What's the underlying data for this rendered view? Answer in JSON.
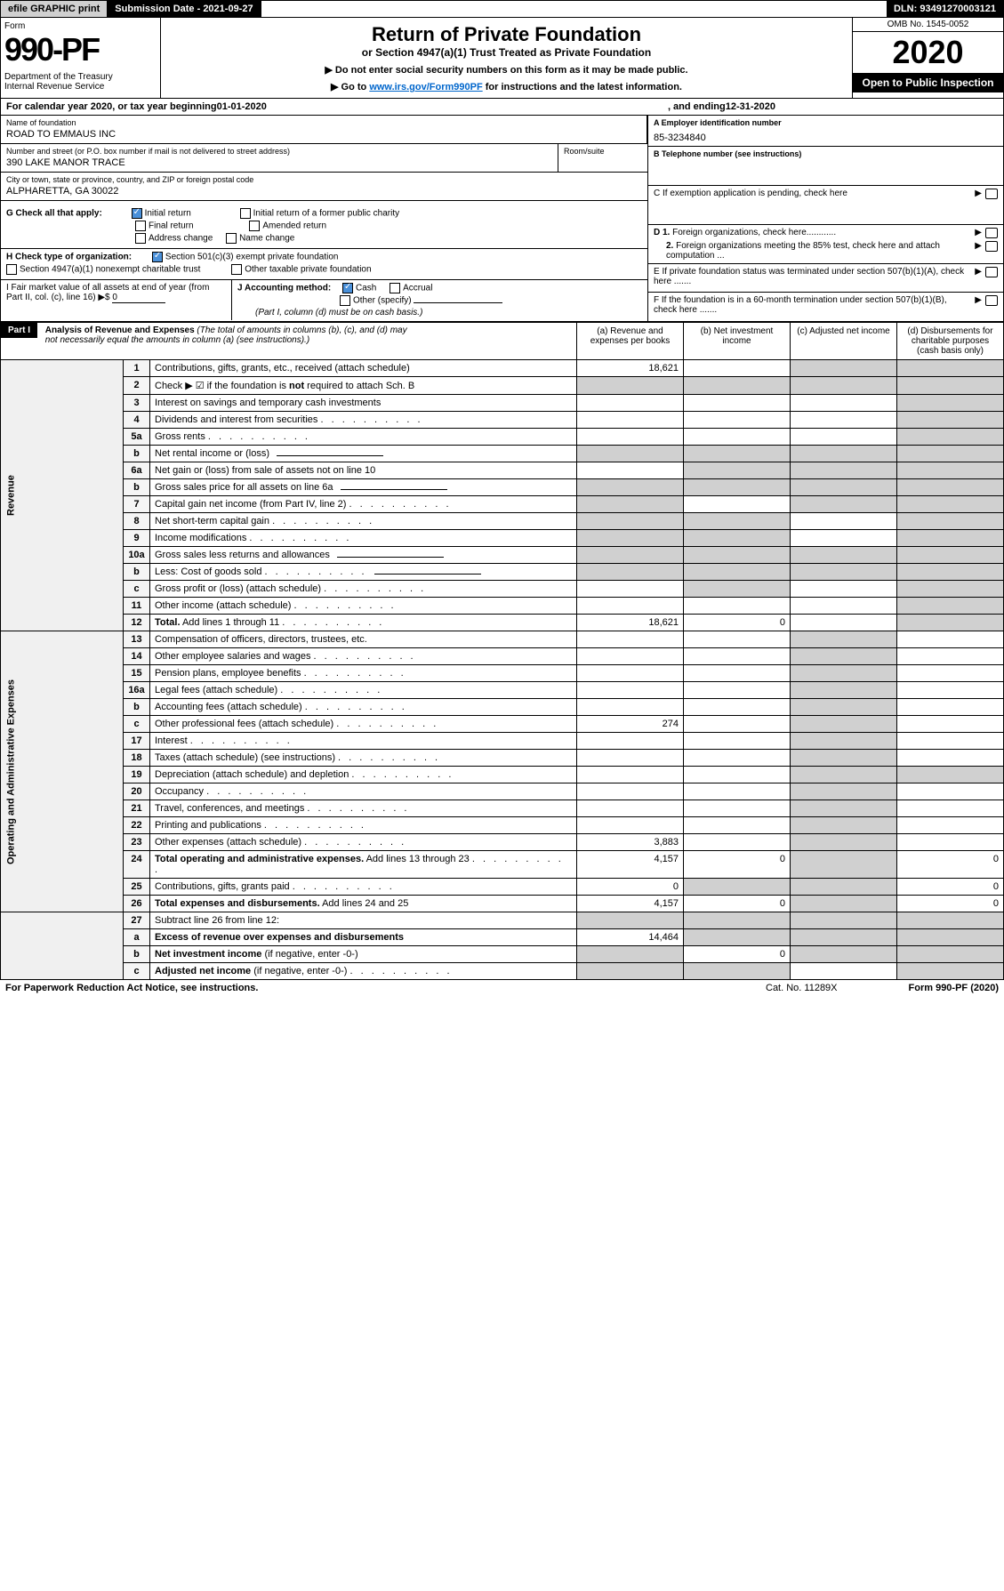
{
  "topbar": {
    "efile": "efile GRAPHIC print",
    "subdate": "Submission Date - 2021-09-27",
    "dln": "DLN: 93491270003121"
  },
  "header": {
    "form_label": "Form",
    "form_num": "990-PF",
    "dept": "Department of the Treasury\nInternal Revenue Service",
    "title": "Return of Private Foundation",
    "subtitle": "or Section 4947(a)(1) Trust Treated as Private Foundation",
    "instr1": "▶ Do not enter social security numbers on this form as it may be made public.",
    "instr2_pre": "▶ Go to ",
    "instr2_link": "www.irs.gov/Form990PF",
    "instr2_post": " for instructions and the latest information.",
    "omb": "OMB No. 1545-0052",
    "year": "2020",
    "open": "Open to Public Inspection"
  },
  "calyear": {
    "pre": "For calendar year 2020, or tax year beginning ",
    "begin": "01-01-2020",
    "mid": ", and ending ",
    "end": "12-31-2020"
  },
  "info": {
    "name_lbl": "Name of foundation",
    "name_val": "ROAD TO EMMAUS INC",
    "addr_lbl": "Number and street (or P.O. box number if mail is not delivered to street address)",
    "addr_val": "390 LAKE MANOR TRACE",
    "room_lbl": "Room/suite",
    "city_lbl": "City or town, state or province, country, and ZIP or foreign postal code",
    "city_val": "ALPHARETTA, GA  30022",
    "g_label": "G Check all that apply:",
    "g_initial": "Initial return",
    "g_initial_former": "Initial return of a former public charity",
    "g_final": "Final return",
    "g_amended": "Amended return",
    "g_address": "Address change",
    "g_name": "Name change",
    "h_label": "H Check type of organization:",
    "h_501c3": "Section 501(c)(3) exempt private foundation",
    "h_4947": "Section 4947(a)(1) nonexempt charitable trust",
    "h_other": "Other taxable private foundation",
    "i_label": "I Fair market value of all assets at end of year (from Part II, col. (c), line 16) ▶$ ",
    "i_val": "0",
    "j_label": "J Accounting method:",
    "j_cash": "Cash",
    "j_accrual": "Accrual",
    "j_other": "Other (specify)",
    "j_note": "(Part I, column (d) must be on cash basis.)",
    "a_lbl": "A Employer identification number",
    "a_val": "85-3234840",
    "b_lbl": "B Telephone number (see instructions)",
    "c_lbl": "C If exemption application is pending, check here",
    "d1_lbl": "D 1. Foreign organizations, check here............",
    "d2_lbl": "2. Foreign organizations meeting the 85% test, check here and attach computation ...",
    "e_lbl": "E If private foundation status was terminated under section 507(b)(1)(A), check here .......",
    "f_lbl": "F If the foundation is in a 60-month termination under section 507(b)(1)(B), check here ......."
  },
  "part1": {
    "label": "Part I",
    "title": "Analysis of Revenue and Expenses",
    "title_note": "(The total of amounts in columns (b), (c), and (d) may not necessarily equal the amounts in column (a) (see instructions).)",
    "col_a": "(a)    Revenue and expenses per books",
    "col_b": "(b)   Net investment income",
    "col_c": "(c)   Adjusted net income",
    "col_d": "(d)   Disbursements for charitable purposes (cash basis only)",
    "revenue_label": "Revenue",
    "expenses_label": "Operating and Administrative Expenses"
  },
  "rows": [
    {
      "n": "1",
      "d": "Contributions, gifts, grants, etc., received (attach schedule)",
      "a": "18,621",
      "shade_c": true,
      "shade_d": true
    },
    {
      "n": "2",
      "d": "Check ▶ ☑ if the foundation is <b>not</b> required to attach Sch. B",
      "shade_a": true,
      "shade_b": true,
      "shade_c": true,
      "shade_d": true,
      "html": true
    },
    {
      "n": "3",
      "d": "Interest on savings and temporary cash investments",
      "shade_d": true
    },
    {
      "n": "4",
      "d": "Dividends and interest from securities",
      "dots": true,
      "shade_d": true
    },
    {
      "n": "5a",
      "d": "Gross rents",
      "dots": true,
      "shade_d": true
    },
    {
      "n": "b",
      "d": "Net rental income or (loss)",
      "line": true,
      "shade_a": true,
      "shade_b": true,
      "shade_c": true,
      "shade_d": true
    },
    {
      "n": "6a",
      "d": "Net gain or (loss) from sale of assets not on line 10",
      "shade_b": true,
      "shade_c": true,
      "shade_d": true
    },
    {
      "n": "b",
      "d": "Gross sales price for all assets on line 6a",
      "line": true,
      "shade_a": true,
      "shade_b": true,
      "shade_c": true,
      "shade_d": true
    },
    {
      "n": "7",
      "d": "Capital gain net income (from Part IV, line 2)",
      "dots": true,
      "shade_a": true,
      "shade_c": true,
      "shade_d": true
    },
    {
      "n": "8",
      "d": "Net short-term capital gain",
      "dots": true,
      "shade_a": true,
      "shade_b": true,
      "shade_d": true
    },
    {
      "n": "9",
      "d": "Income modifications",
      "dots": true,
      "shade_a": true,
      "shade_b": true,
      "shade_d": true
    },
    {
      "n": "10a",
      "d": "Gross sales less returns and allowances",
      "line": true,
      "shade_a": true,
      "shade_b": true,
      "shade_c": true,
      "shade_d": true
    },
    {
      "n": "b",
      "d": "Less: Cost of goods sold",
      "dots": true,
      "line": true,
      "shade_a": true,
      "shade_b": true,
      "shade_c": true,
      "shade_d": true
    },
    {
      "n": "c",
      "d": "Gross profit or (loss) (attach schedule)",
      "dots": true,
      "shade_b": true,
      "shade_d": true
    },
    {
      "n": "11",
      "d": "Other income (attach schedule)",
      "dots": true,
      "shade_d": true
    },
    {
      "n": "12",
      "d": "<b>Total.</b> Add lines 1 through 11",
      "dots": true,
      "a": "18,621",
      "b": "0",
      "shade_d": true,
      "html": true
    }
  ],
  "exp_rows": [
    {
      "n": "13",
      "d": "Compensation of officers, directors, trustees, etc.",
      "shade_c": true
    },
    {
      "n": "14",
      "d": "Other employee salaries and wages",
      "dots": true,
      "shade_c": true
    },
    {
      "n": "15",
      "d": "Pension plans, employee benefits",
      "dots": true,
      "shade_c": true
    },
    {
      "n": "16a",
      "d": "Legal fees (attach schedule)",
      "dots": true,
      "shade_c": true
    },
    {
      "n": "b",
      "d": "Accounting fees (attach schedule)",
      "dots": true,
      "shade_c": true
    },
    {
      "n": "c",
      "d": "Other professional fees (attach schedule)",
      "dots": true,
      "a": "274",
      "shade_c": true
    },
    {
      "n": "17",
      "d": "Interest",
      "dots": true,
      "shade_c": true
    },
    {
      "n": "18",
      "d": "Taxes (attach schedule) (see instructions)",
      "dots": true,
      "shade_c": true
    },
    {
      "n": "19",
      "d": "Depreciation (attach schedule) and depletion",
      "dots": true,
      "shade_c": true,
      "shade_d": true
    },
    {
      "n": "20",
      "d": "Occupancy",
      "dots": true,
      "shade_c": true
    },
    {
      "n": "21",
      "d": "Travel, conferences, and meetings",
      "dots": true,
      "shade_c": true
    },
    {
      "n": "22",
      "d": "Printing and publications",
      "dots": true,
      "shade_c": true
    },
    {
      "n": "23",
      "d": "Other expenses (attach schedule)",
      "dots": true,
      "a": "3,883",
      "shade_c": true
    },
    {
      "n": "24",
      "d": "<b>Total operating and administrative expenses.</b> Add lines 13 through 23",
      "dots": true,
      "a": "4,157",
      "b": "0",
      "d_val": "0",
      "shade_c": true,
      "html": true
    },
    {
      "n": "25",
      "d": "Contributions, gifts, grants paid",
      "dots": true,
      "a": "0",
      "shade_b": true,
      "shade_c": true,
      "d_val": "0"
    },
    {
      "n": "26",
      "d": "<b>Total expenses and disbursements.</b> Add lines 24 and 25",
      "a": "4,157",
      "b": "0",
      "d_val": "0",
      "shade_c": true,
      "html": true
    },
    {
      "n": "27",
      "d": "Subtract line 26 from line 12:",
      "shade_a": true,
      "shade_b": true,
      "shade_c": true,
      "shade_d": true,
      "no_vert": true
    },
    {
      "n": "a",
      "d": "<b>Excess of revenue over expenses and disbursements</b>",
      "a": "14,464",
      "shade_b": true,
      "shade_c": true,
      "shade_d": true,
      "html": true,
      "no_vert": true
    },
    {
      "n": "b",
      "d": "<b>Net investment income</b> (if negative, enter -0-)",
      "shade_a": true,
      "b": "0",
      "shade_c": true,
      "shade_d": true,
      "html": true,
      "no_vert": true
    },
    {
      "n": "c",
      "d": "<b>Adjusted net income</b> (if negative, enter -0-)",
      "dots": true,
      "shade_a": true,
      "shade_b": true,
      "shade_d": true,
      "html": true,
      "no_vert": true
    }
  ],
  "footer": {
    "pra": "For Paperwork Reduction Act Notice, see instructions.",
    "cat": "Cat. No. 11289X",
    "form": "Form 990-PF (2020)"
  }
}
